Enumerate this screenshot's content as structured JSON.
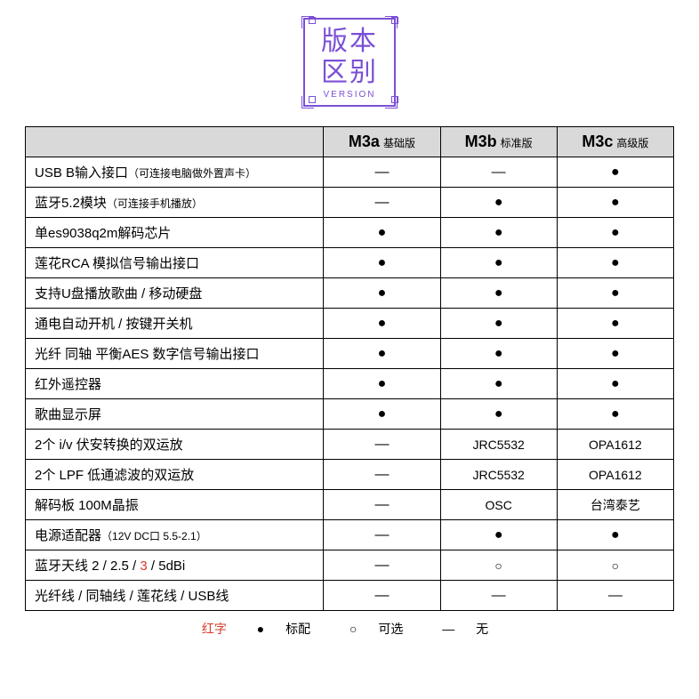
{
  "badge": {
    "line1": "版本",
    "line2": "区别",
    "sub": "VERSION",
    "border_color": "#7b4fd6"
  },
  "header": {
    "blank": "",
    "versions": [
      {
        "name": "M3a",
        "sub": "基础版"
      },
      {
        "name": "M3b",
        "sub": "标准版"
      },
      {
        "name": "M3c",
        "sub": "高级版"
      }
    ]
  },
  "symbols": {
    "dot": "●",
    "dash": "—",
    "open": "○"
  },
  "rows": [
    {
      "label": "USB B输入接口",
      "sub": "（可连接电脑做外置声卡）",
      "c": [
        "—",
        "—",
        "●"
      ]
    },
    {
      "label": "蓝牙5.2模块",
      "sub": "（可连接手机播放）",
      "c": [
        "—",
        "●",
        "●"
      ]
    },
    {
      "label": "单es9038q2m解码芯片",
      "c": [
        "●",
        "●",
        "●"
      ]
    },
    {
      "label": "莲花RCA 模拟信号输出接口",
      "c": [
        "●",
        "●",
        "●"
      ]
    },
    {
      "label": "支持U盘播放歌曲 / 移动硬盘",
      "c": [
        "●",
        "●",
        "●"
      ]
    },
    {
      "label": "通电自动开机 / 按键开关机",
      "c": [
        "●",
        "●",
        "●"
      ]
    },
    {
      "label": "光纤 同轴 平衡AES 数字信号输出接口",
      "c": [
        "●",
        "●",
        "●"
      ]
    },
    {
      "label": "红外遥控器",
      "c": [
        "●",
        "●",
        "●"
      ]
    },
    {
      "label": "歌曲显示屏",
      "c": [
        "●",
        "●",
        "●"
      ]
    },
    {
      "label": "2个 i/v 伏安转换的双运放",
      "c": [
        "—",
        "JRC5532",
        "OPA1612"
      ]
    },
    {
      "label": "2个 LPF 低通滤波的双运放",
      "c": [
        "—",
        "JRC5532",
        "OPA1612"
      ]
    },
    {
      "label": "解码板 100M晶振",
      "c": [
        "—",
        "OSC",
        "台湾泰艺"
      ]
    },
    {
      "label": "电源适配器",
      "sub": "（12V DC口 5.5-2.1）",
      "c": [
        "—",
        "●",
        "●"
      ]
    },
    {
      "label_html": true,
      "label": "蓝牙天线  2 / 2.5 / ",
      "red": "3",
      "label_after": " / 5dBi",
      "c": [
        "—",
        "○",
        "○"
      ]
    },
    {
      "label": "光纤线 / 同轴线 / 莲花线 / USB线",
      "c": [
        "—",
        "—",
        "—"
      ]
    }
  ],
  "legend": {
    "red_label": "红字",
    "items": [
      {
        "sym": "●",
        "text": "标配"
      },
      {
        "sym": "○",
        "text": "可选"
      },
      {
        "sym": "—",
        "text": "无"
      }
    ]
  },
  "style": {
    "header_bg": "#d9d9d9",
    "border_color": "#000000",
    "body_font_size": 15,
    "header_name_size": 18,
    "header_sub_size": 12,
    "cell_font_size": 14,
    "red_color": "#d93a2b"
  }
}
